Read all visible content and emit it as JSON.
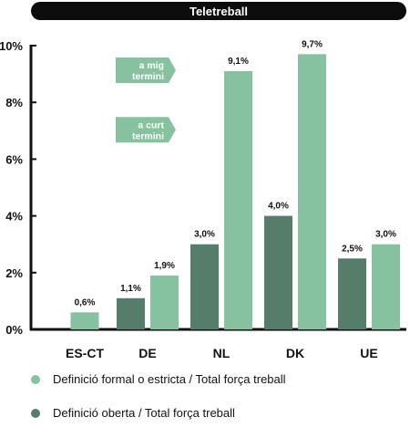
{
  "colors": {
    "formal": "#87c2a0",
    "oberta": "#557d69",
    "title_bg": "#0d0d0d",
    "axis": "#111111"
  },
  "chart_data": {
    "type": "bar",
    "title": "Teletreball",
    "categories": [
      "ES-CT",
      "DE",
      "NL",
      "DK",
      "UE"
    ],
    "ylim": [
      0,
      10
    ],
    "y_ticks": [
      0,
      2,
      4,
      6,
      8,
      10
    ],
    "y_tick_labels": [
      "0%",
      "2%",
      "4%",
      "6%",
      "8%",
      "10%"
    ],
    "grid": false,
    "legend_position": "bottom",
    "series": [
      {
        "name": "Definició oberta / Total força treball",
        "values": [
          null,
          1.1,
          3.0,
          4.0,
          2.5
        ],
        "labels": [
          "",
          "1,1%",
          "3,0%",
          "4,0%",
          "2,5%"
        ]
      },
      {
        "name": "Definició formal o estricta / Total força treball",
        "values": [
          0.6,
          1.9,
          9.1,
          9.7,
          3.0
        ],
        "labels": [
          "0,6%",
          "1,9%",
          "9,1%",
          "9,7%",
          "3,0%"
        ]
      }
    ],
    "annotations": [
      {
        "text_line1": "a mig",
        "text_line2": "termini",
        "y": 9.1
      },
      {
        "text_line1": "a curt",
        "text_line2": "termini",
        "y": 7.0
      }
    ]
  }
}
